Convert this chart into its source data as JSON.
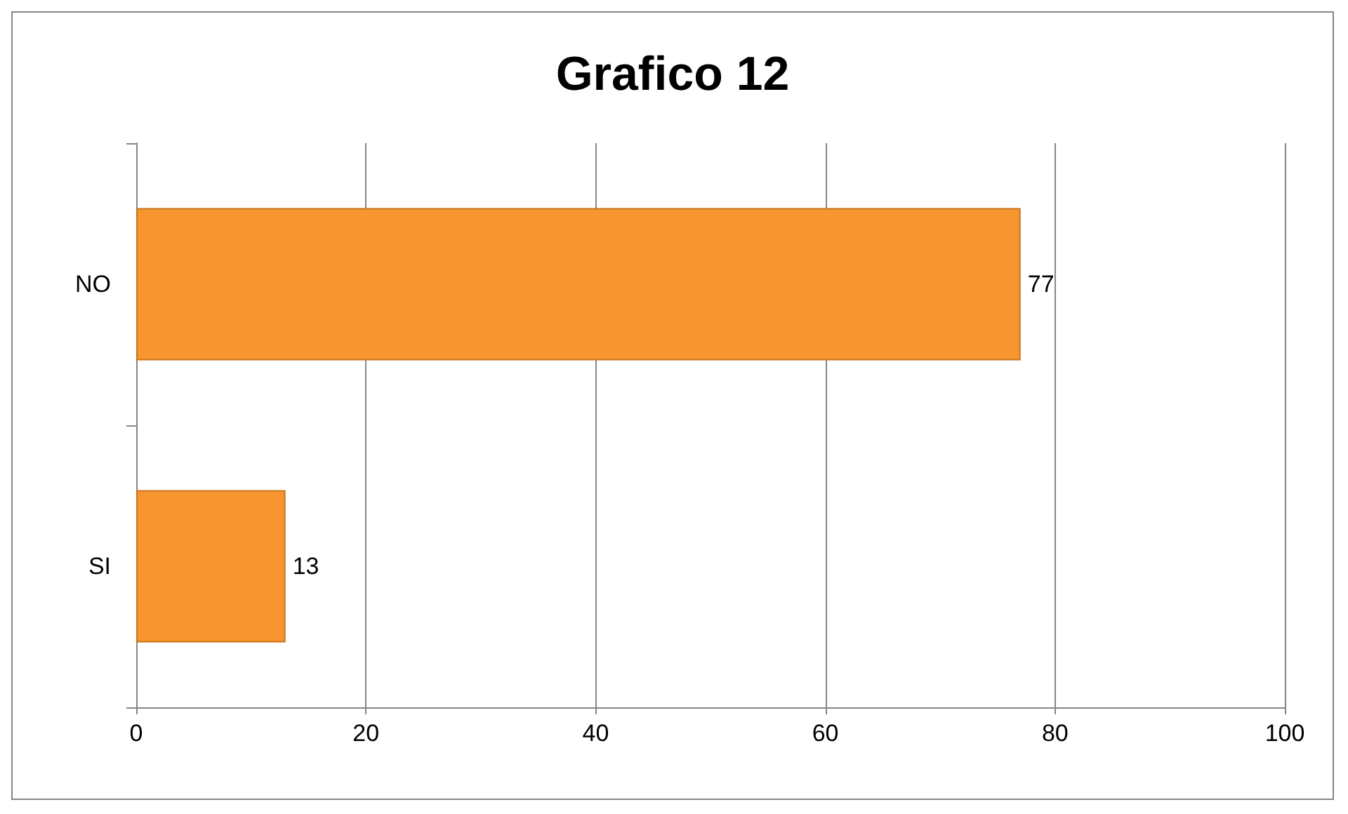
{
  "chart_data": {
    "type": "bar",
    "title": "Grafico 12",
    "orientation": "horizontal",
    "categories": [
      "NO",
      "SI"
    ],
    "values": [
      77,
      13
    ],
    "color": "#f7962f",
    "xlim": [
      0,
      100
    ],
    "xticks": [
      0,
      20,
      40,
      60,
      80,
      100
    ],
    "grid": "x",
    "data_labels": true
  }
}
